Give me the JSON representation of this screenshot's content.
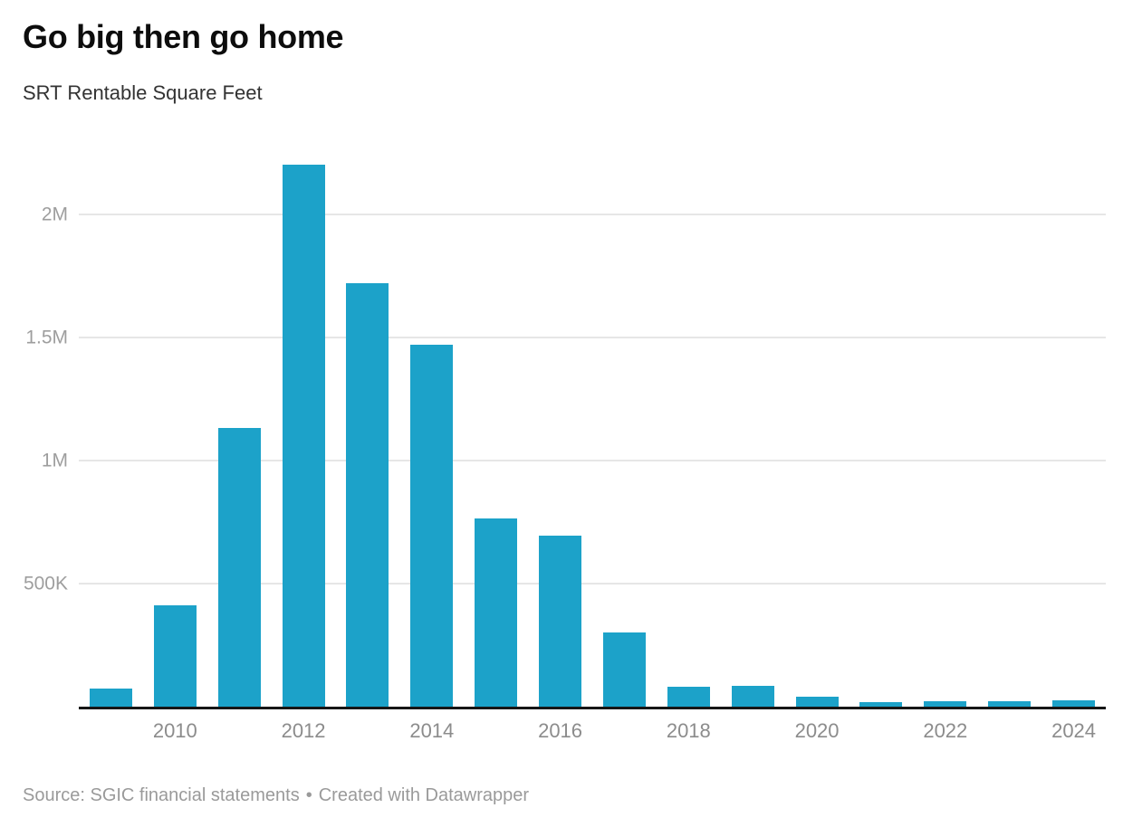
{
  "header": {
    "title": "Go big then go home",
    "subtitle": "SRT Rentable Square Feet"
  },
  "footer": {
    "source": "Source: SGIC financial statements",
    "separator": "•",
    "credit": "Created with Datawrapper"
  },
  "colors": {
    "bar": "#1ca2c9",
    "grid": "#e6e6e6",
    "axis": "#161616",
    "title_text": "#0d0d0d",
    "subtitle_text": "#333333",
    "ytick_text": "#9e9e9e",
    "xtick_text": "#8c8c8c",
    "footer_text": "#9a9a9a"
  },
  "chart_data": {
    "type": "bar",
    "title": "Go big then go home",
    "subtitle": "SRT Rentable Square Feet",
    "xlabel": "",
    "ylabel": "SRT Rentable Square Feet",
    "categories": [
      "2009",
      "2010",
      "2011",
      "2012",
      "2013",
      "2014",
      "2015",
      "2016",
      "2017",
      "2018",
      "2019",
      "2020",
      "2021",
      "2022",
      "2023",
      "2024"
    ],
    "values": [
      75000,
      410000,
      1130000,
      2200000,
      1720000,
      1470000,
      765000,
      695000,
      300000,
      80000,
      85000,
      40000,
      20000,
      22000,
      22000,
      25000
    ],
    "ylim": [
      0,
      2300000
    ],
    "yticks": [
      {
        "label": "500K",
        "value": 500000
      },
      {
        "label": "1M",
        "value": 1000000
      },
      {
        "label": "1.5M",
        "value": 1500000
      },
      {
        "label": "2M",
        "value": 2000000
      }
    ],
    "x_tick_labels": [
      "2010",
      "2012",
      "2014",
      "2016",
      "2018",
      "2020",
      "2022",
      "2024"
    ],
    "grid": "horizontal",
    "legend": "none",
    "bar_color": "#1ca2c9",
    "source": "SGIC financial statements",
    "credit": "Created with Datawrapper"
  }
}
